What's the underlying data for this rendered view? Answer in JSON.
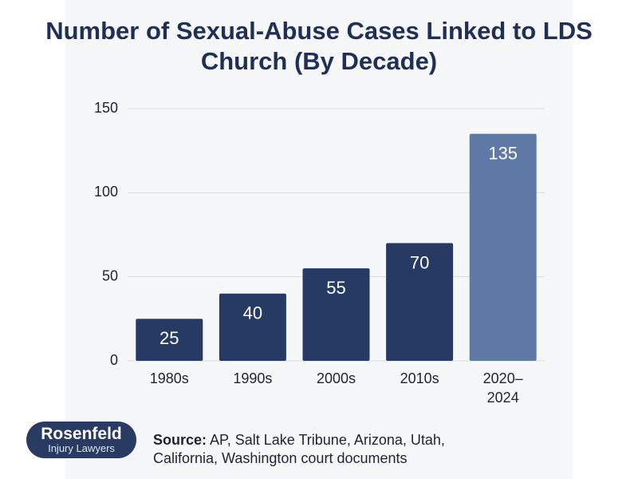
{
  "chart_data": {
    "type": "bar",
    "title": "Number of Sexual-Abuse Cases Linked to LDS Church (By Decade)",
    "categories": [
      "1980s",
      "1990s",
      "2000s",
      "2010s",
      "2020–2024"
    ],
    "values": [
      25,
      40,
      55,
      70,
      135
    ],
    "colors": [
      "#263a63",
      "#263a63",
      "#263a63",
      "#263a63",
      "#5f7aa6"
    ],
    "ylim": [
      0,
      150
    ],
    "yticks": [
      0,
      50,
      100,
      150
    ],
    "grid": true,
    "source_label": "Source:",
    "source": "AP, Salt Lake Tribune, Arizona, Utah, California, Washington court documents"
  },
  "branding": {
    "name": "Rosenfeld",
    "subtitle": "Injury Lawyers"
  }
}
